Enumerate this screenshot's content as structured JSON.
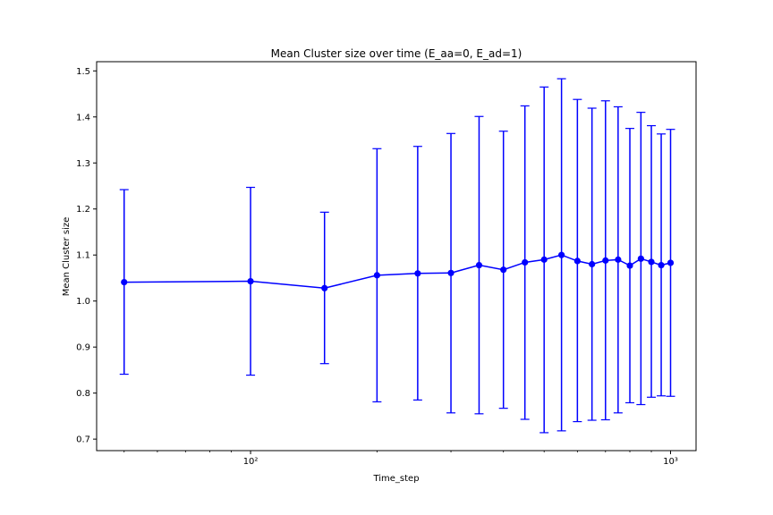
{
  "chart_data": {
    "type": "line",
    "title": "Mean Cluster size over time (E_aa=0, E_ad=1)",
    "xlabel": "Time_step",
    "ylabel": "Mean Cluster size",
    "xscale": "log",
    "xlim": [
      43,
      1150
    ],
    "ylim": [
      0.675,
      1.52
    ],
    "grid": false,
    "x_ticks": [
      {
        "value": 100,
        "label": "10²"
      },
      {
        "value": 1000,
        "label": "10³"
      }
    ],
    "y_ticks": [
      {
        "value": 0.7,
        "label": "0.7"
      },
      {
        "value": 0.8,
        "label": "0.8"
      },
      {
        "value": 0.9,
        "label": "0.9"
      },
      {
        "value": 1.0,
        "label": "1.0"
      },
      {
        "value": 1.1,
        "label": "1.1"
      },
      {
        "value": 1.2,
        "label": "1.2"
      },
      {
        "value": 1.3,
        "label": "1.3"
      },
      {
        "value": 1.4,
        "label": "1.4"
      },
      {
        "value": 1.5,
        "label": "1.5"
      }
    ],
    "series": [
      {
        "color": "#0000ff",
        "marker": "circle",
        "x": [
          50,
          100,
          150,
          200,
          250,
          300,
          350,
          400,
          450,
          500,
          550,
          600,
          650,
          700,
          750,
          800,
          850,
          900,
          950,
          1000
        ],
        "y": [
          1.041,
          1.043,
          1.028,
          1.056,
          1.06,
          1.061,
          1.078,
          1.068,
          1.084,
          1.09,
          1.1,
          1.087,
          1.08,
          1.088,
          1.09,
          1.077,
          1.092,
          1.085,
          1.078,
          1.083
        ],
        "err_low": [
          0.841,
          0.839,
          0.864,
          0.781,
          0.785,
          0.757,
          0.755,
          0.767,
          0.743,
          0.714,
          0.718,
          0.738,
          0.741,
          0.742,
          0.757,
          0.779,
          0.775,
          0.791,
          0.794,
          0.793
        ],
        "err_high": [
          1.242,
          1.247,
          1.193,
          1.331,
          1.336,
          1.364,
          1.401,
          1.369,
          1.424,
          1.465,
          1.483,
          1.438,
          1.419,
          1.435,
          1.422,
          1.375,
          1.41,
          1.381,
          1.363,
          1.373
        ]
      }
    ]
  }
}
